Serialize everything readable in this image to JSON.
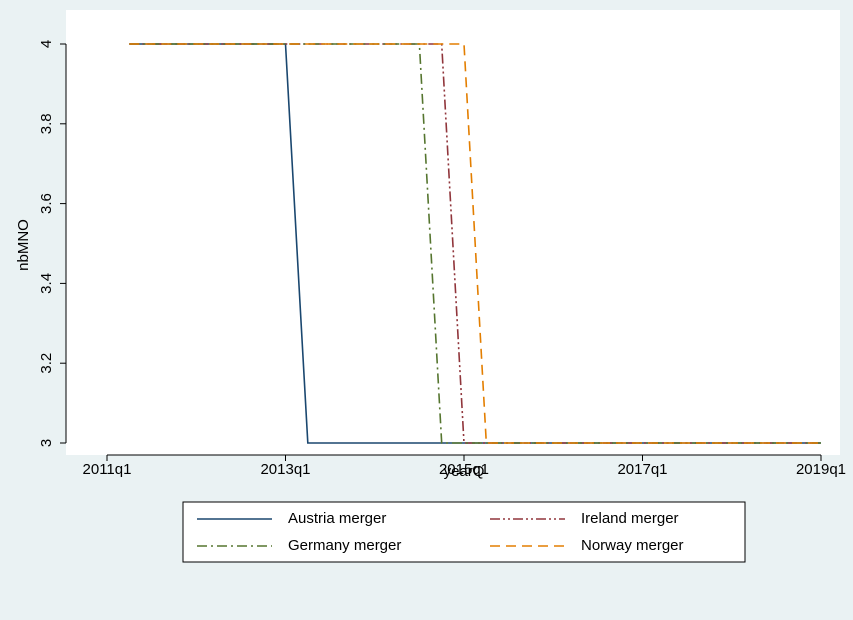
{
  "chart_data": {
    "type": "line",
    "x_label": "yearQ",
    "y_label": "nbMNO",
    "xlim": [
      204,
      236
    ],
    "ylim": [
      3,
      4
    ],
    "xticks": [
      {
        "value": 204,
        "label": "2011q1"
      },
      {
        "value": 212,
        "label": "2013q1"
      },
      {
        "value": 220,
        "label": "2015q1"
      },
      {
        "value": 228,
        "label": "2017q1"
      },
      {
        "value": 236,
        "label": "2019q1"
      }
    ],
    "yticks": [
      3,
      3.2,
      3.4,
      3.6,
      3.8,
      4
    ],
    "grid": false,
    "legend": "bottom",
    "series": [
      {
        "name": "Austria merger",
        "color": "#1a476f",
        "style": "solid",
        "x": [
          205,
          212,
          213,
          236
        ],
        "values": [
          4,
          4,
          3,
          3
        ]
      },
      {
        "name": "Ireland merger",
        "color": "#90353b",
        "style": "dash-dot-dot",
        "x": [
          205,
          219,
          220,
          236
        ],
        "values": [
          4,
          4,
          3,
          3
        ]
      },
      {
        "name": "Germany merger",
        "color": "#55752f",
        "style": "dash-dot",
        "x": [
          205,
          218,
          219,
          236
        ],
        "values": [
          4,
          4,
          3,
          3
        ]
      },
      {
        "name": "Norway merger",
        "color": "#e37e00",
        "style": "dashed",
        "x": [
          205,
          220,
          221,
          236
        ],
        "values": [
          4,
          4,
          3,
          3
        ]
      }
    ]
  }
}
